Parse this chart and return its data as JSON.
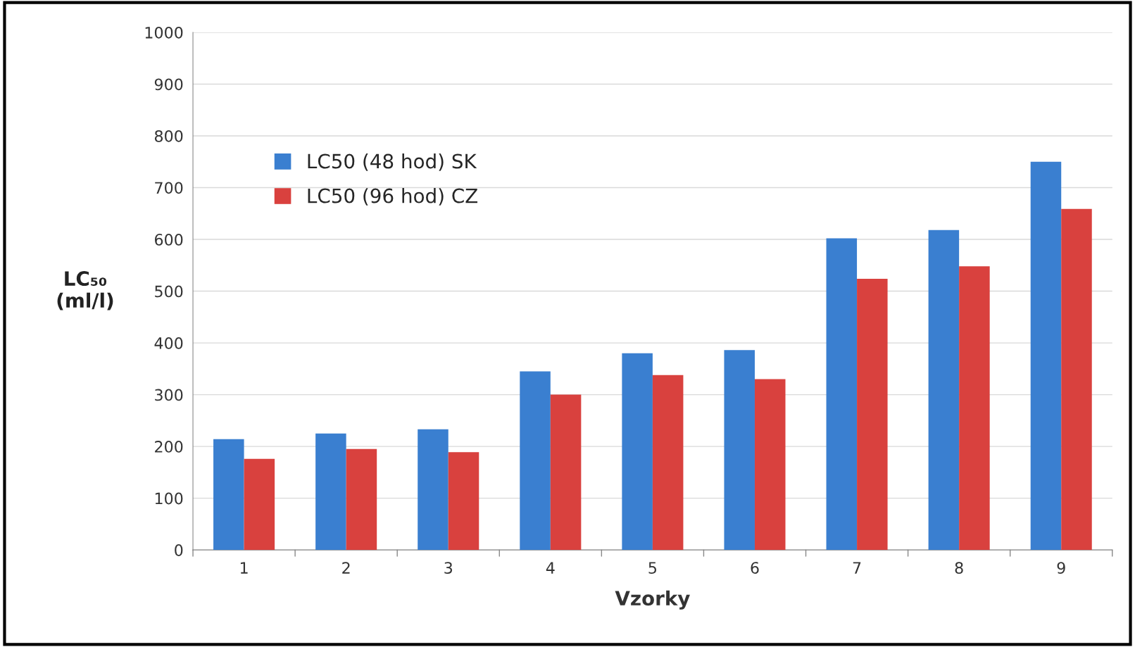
{
  "chart_data": {
    "type": "bar",
    "xlabel": "Vzorky",
    "ylabel": "LC₅₀\n(ml/l)",
    "categories": [
      "1",
      "2",
      "3",
      "4",
      "5",
      "6",
      "7",
      "8",
      "9"
    ],
    "series": [
      {
        "name": "LC50 (48 hod) SK",
        "color": "#3a7fd0",
        "values": [
          214,
          225,
          233,
          345,
          380,
          386,
          602,
          618,
          750
        ]
      },
      {
        "name": "LC50 (96 hod) CZ",
        "color": "#d9413e",
        "values": [
          176,
          195,
          189,
          300,
          338,
          330,
          524,
          548,
          659
        ]
      }
    ],
    "ylim": [
      0,
      1000
    ],
    "yticks": [
      0,
      100,
      200,
      300,
      400,
      500,
      600,
      700,
      800,
      900,
      1000
    ],
    "grid": "y",
    "legend": "top left"
  }
}
